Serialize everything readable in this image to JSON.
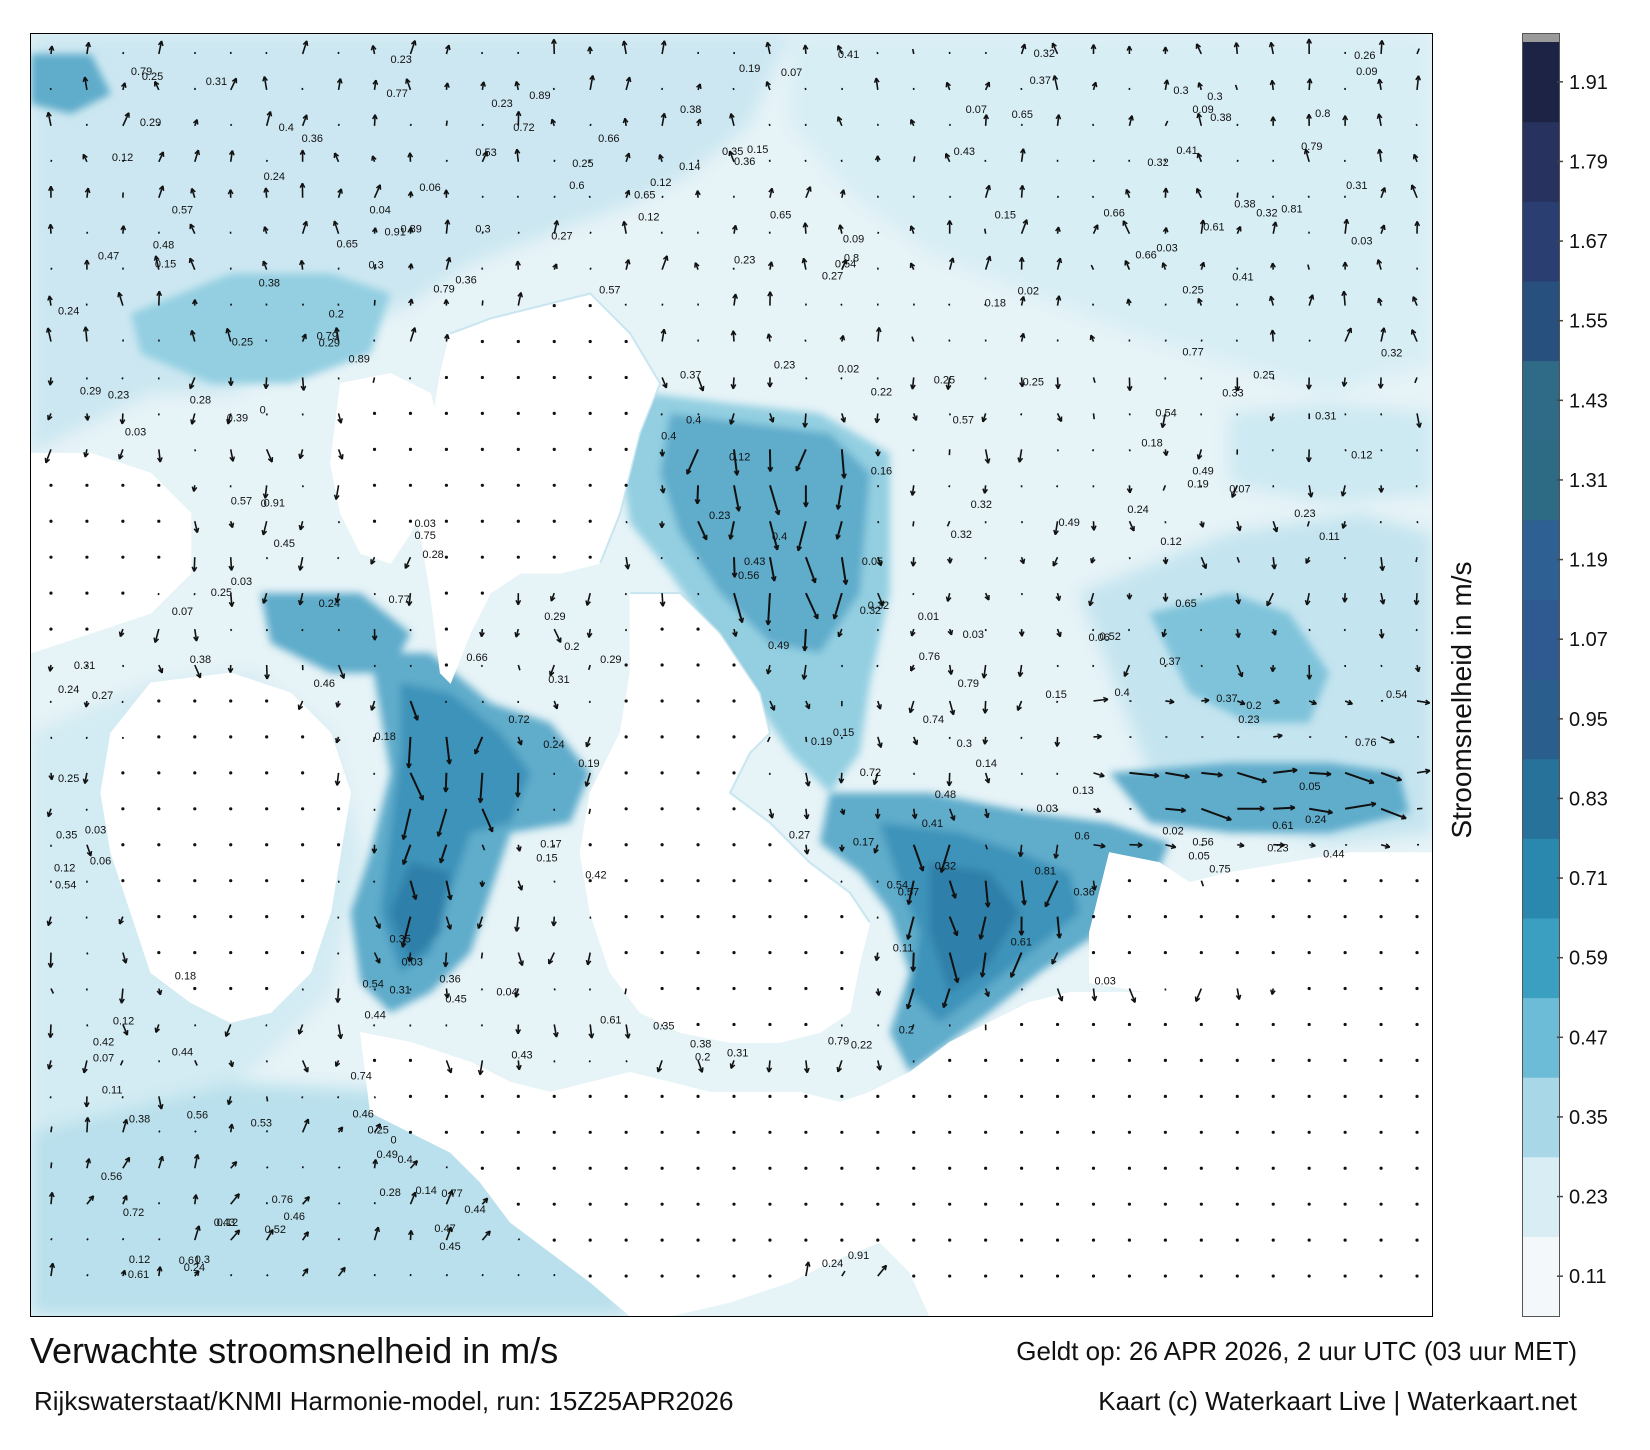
{
  "title": "Verwachte stroomsnelheid in m/s",
  "subtitle": "Rijkswaterstaat/KNMI Harmonie-model, run: 15Z25APR2026",
  "valid_time": "Geldt op: 26 APR 2026, 2 uur UTC (03 uur MET)",
  "credit": "Kaart (c) Waterkaart Live | Waterkaart.net",
  "legend": {
    "title": "Stroomsnelheid in m/s",
    "ticks": [
      "0.11",
      "0.23",
      "0.35",
      "0.47",
      "0.59",
      "0.71",
      "0.83",
      "0.95",
      "1.07",
      "1.19",
      "1.31",
      "1.43",
      "1.55",
      "1.67",
      "1.79",
      "1.91"
    ],
    "colors": [
      "#f3f9fb",
      "#d8edf4",
      "#a8d8e7",
      "#6cbcd7",
      "#3b9fc2",
      "#2a87ad",
      "#26729a",
      "#2a5f8d",
      "#2f5a91",
      "#2f6093",
      "#2d6a83",
      "#2f6a87",
      "#27507f",
      "#2a3e71",
      "#27325f",
      "#1d2344",
      "#191c33"
    ]
  },
  "map": {
    "land_color": "#ffffff",
    "water_light": "#e6f3f7",
    "channel_colors": [
      "#93cfe1",
      "#5eaccb",
      "#3e93b9",
      "#2e7fa9",
      "#2a6f9e"
    ],
    "speed_labels": [
      "0.13",
      "0.17",
      "0.12",
      "0.1",
      "0.15",
      "0.18",
      "0.16",
      "0.11",
      "0.14",
      "0.09",
      "0.12",
      "0.22",
      "0.19",
      "0.24",
      "0.2",
      "0.23",
      "0.25",
      "0.28",
      "0.26",
      "0.21",
      "0.3",
      "0.32",
      "0.29",
      "0.37",
      "0.34",
      "0.39",
      "0.38",
      "0.36",
      "0.33",
      "0.31",
      "0.27",
      "0.32",
      "0.26",
      "0.25",
      "0.23",
      "0.19",
      "0.15",
      "0.12",
      "0.07",
      "0.05",
      "0.41",
      "0.43",
      "0.45",
      "0.47",
      "0.52",
      "0.57",
      "0.61",
      "0.66",
      "0.72",
      "0.77",
      "0.81",
      "0.76",
      "0.74",
      "0.65",
      "0.54",
      "0.42",
      "0.35",
      "0.3",
      "0.29",
      "0.91",
      "0.89",
      "0.8",
      "0.79",
      "0.75",
      "0.6",
      "0.56",
      "0.53",
      "0.5",
      "0.44",
      "0.49",
      "0.48",
      "0.46",
      "0.4",
      "0.31",
      "0.06",
      "0.04",
      "0.03",
      "0.02",
      "0.01",
      "0"
    ]
  }
}
